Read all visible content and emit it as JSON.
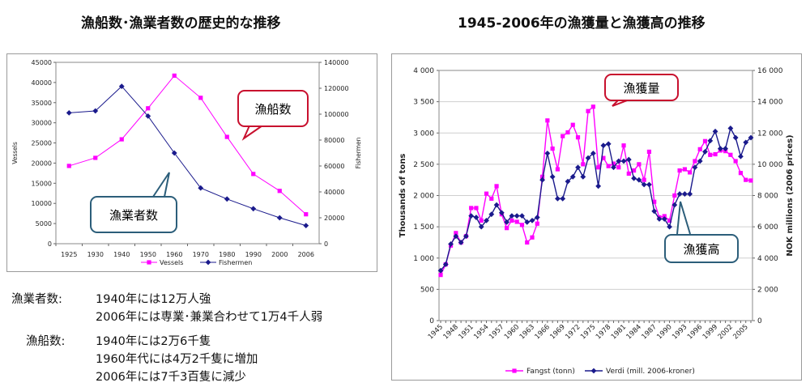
{
  "titles": {
    "left": "漁船数･漁業者数の歴史的な推移",
    "right": "1945-2006年の漁獲量と漁獲高の推移"
  },
  "left_chart_callouts": {
    "vessels": "漁船数",
    "fishermen": "漁業者数"
  },
  "right_chart_callouts": {
    "catch": "漁獲量",
    "value": "漁獲高"
  },
  "notes": [
    {
      "label": "漁業者数:",
      "lines": [
        "1940年には12万人強",
        "2006年には専業･兼業合わせて1万4千人弱"
      ]
    },
    {
      "label": "漁船数:",
      "lines": [
        "1940年には2万6千隻",
        "1960年代には4万2千隻に増加",
        "2006年には7千3百隻に減少"
      ]
    }
  ],
  "colors": {
    "vessels": "#ff00ff",
    "fishermen": "#1a1a8c",
    "callout_red": "#c8102e",
    "callout_blue": "#2c5e7a"
  },
  "chart_data": [
    {
      "type": "line",
      "categories": [
        "1925",
        "1930",
        "1940",
        "1950",
        "1960",
        "1970",
        "1980",
        "1990",
        "2000",
        "2006"
      ],
      "ylabel": "Vessels",
      "y2label": "Fishermen",
      "ylim": [
        0,
        45000
      ],
      "y2lim": [
        0,
        140000
      ],
      "yticks": [
        "0",
        "5000",
        "10000",
        "15000",
        "20000",
        "25000",
        "30000",
        "35000",
        "40000",
        "45000"
      ],
      "y2ticks": [
        "0",
        "20000",
        "40000",
        "60000",
        "80000",
        "100000",
        "120000",
        "140000"
      ],
      "grid": false,
      "legend": "bottom",
      "series": [
        {
          "name": "Vessels",
          "axis": "left",
          "values": [
            19300,
            21300,
            25900,
            33600,
            41700,
            36200,
            26500,
            17300,
            13100,
            7300
          ]
        },
        {
          "name": "Fishermen",
          "axis": "right",
          "values": [
            101000,
            102500,
            121500,
            98500,
            70000,
            43000,
            34500,
            27000,
            20000,
            14000
          ]
        }
      ]
    },
    {
      "type": "line",
      "x": [
        1945,
        1946,
        1947,
        1948,
        1949,
        1950,
        1951,
        1952,
        1953,
        1954,
        1955,
        1956,
        1957,
        1958,
        1959,
        1960,
        1961,
        1962,
        1963,
        1964,
        1965,
        1966,
        1967,
        1968,
        1969,
        1970,
        1971,
        1972,
        1973,
        1974,
        1975,
        1976,
        1977,
        1978,
        1979,
        1980,
        1981,
        1982,
        1983,
        1984,
        1985,
        1986,
        1987,
        1988,
        1989,
        1990,
        1991,
        1992,
        1993,
        1994,
        1995,
        1996,
        1997,
        1998,
        1999,
        2000,
        2001,
        2002,
        2003,
        2004,
        2005,
        2006
      ],
      "xticks": [
        "1945",
        "1948",
        "1951",
        "1954",
        "1957",
        "1960",
        "1963",
        "1966",
        "1969",
        "1972",
        "1975",
        "1978",
        "1981",
        "1984",
        "1987",
        "1990",
        "1993",
        "1996",
        "1999",
        "2002",
        "2005"
      ],
      "ylabel": "Thousands of tons",
      "y2label": "NOK millions (2006 prices)",
      "ylim": [
        0,
        4000
      ],
      "y2lim": [
        0,
        16000
      ],
      "yticks": [
        "0",
        "500",
        "1 000",
        "1 500",
        "2 000",
        "2 500",
        "3 000",
        "3 500",
        "4 000"
      ],
      "y2ticks": [
        "0",
        "2 000",
        "4 000",
        "6 000",
        "8 000",
        "10 000",
        "12 000",
        "14 000",
        "16 000"
      ],
      "grid": true,
      "legend": "bottom",
      "series": [
        {
          "name": "Fangst (tonn)",
          "axis": "left",
          "values": [
            730,
            900,
            1200,
            1400,
            1250,
            1350,
            1800,
            1800,
            1600,
            2030,
            1950,
            2150,
            1700,
            1480,
            1600,
            1580,
            1530,
            1250,
            1330,
            1550,
            2300,
            3200,
            2750,
            2420,
            2950,
            3010,
            3130,
            2930,
            2500,
            3350,
            3420,
            2450,
            2600,
            2470,
            2510,
            2450,
            2800,
            2350,
            2400,
            2500,
            2250,
            2700,
            1900,
            1650,
            1670,
            1600,
            2000,
            2400,
            2420,
            2370,
            2550,
            2740,
            2870,
            2650,
            2660,
            2720,
            2710,
            2650,
            2550,
            2360,
            2250,
            2240
          ]
        },
        {
          "name": "Verdi (mill. 2006-kroner)",
          "axis": "right",
          "values": [
            3200,
            3600,
            4900,
            5400,
            5000,
            5400,
            6700,
            6600,
            6000,
            6400,
            6800,
            7400,
            6900,
            6300,
            6700,
            6700,
            6700,
            6300,
            6400,
            6600,
            9000,
            10700,
            9200,
            7800,
            7800,
            8900,
            9200,
            9800,
            9200,
            10400,
            10700,
            8600,
            11200,
            11300,
            9800,
            10200,
            10200,
            10300,
            9100,
            9000,
            8700,
            8700,
            7000,
            6500,
            6500,
            6000,
            7400,
            8100,
            8100,
            8100,
            9800,
            10200,
            10800,
            11500,
            12100,
            11000,
            11000,
            12300,
            11700,
            10500,
            11400,
            11700
          ]
        }
      ]
    }
  ]
}
